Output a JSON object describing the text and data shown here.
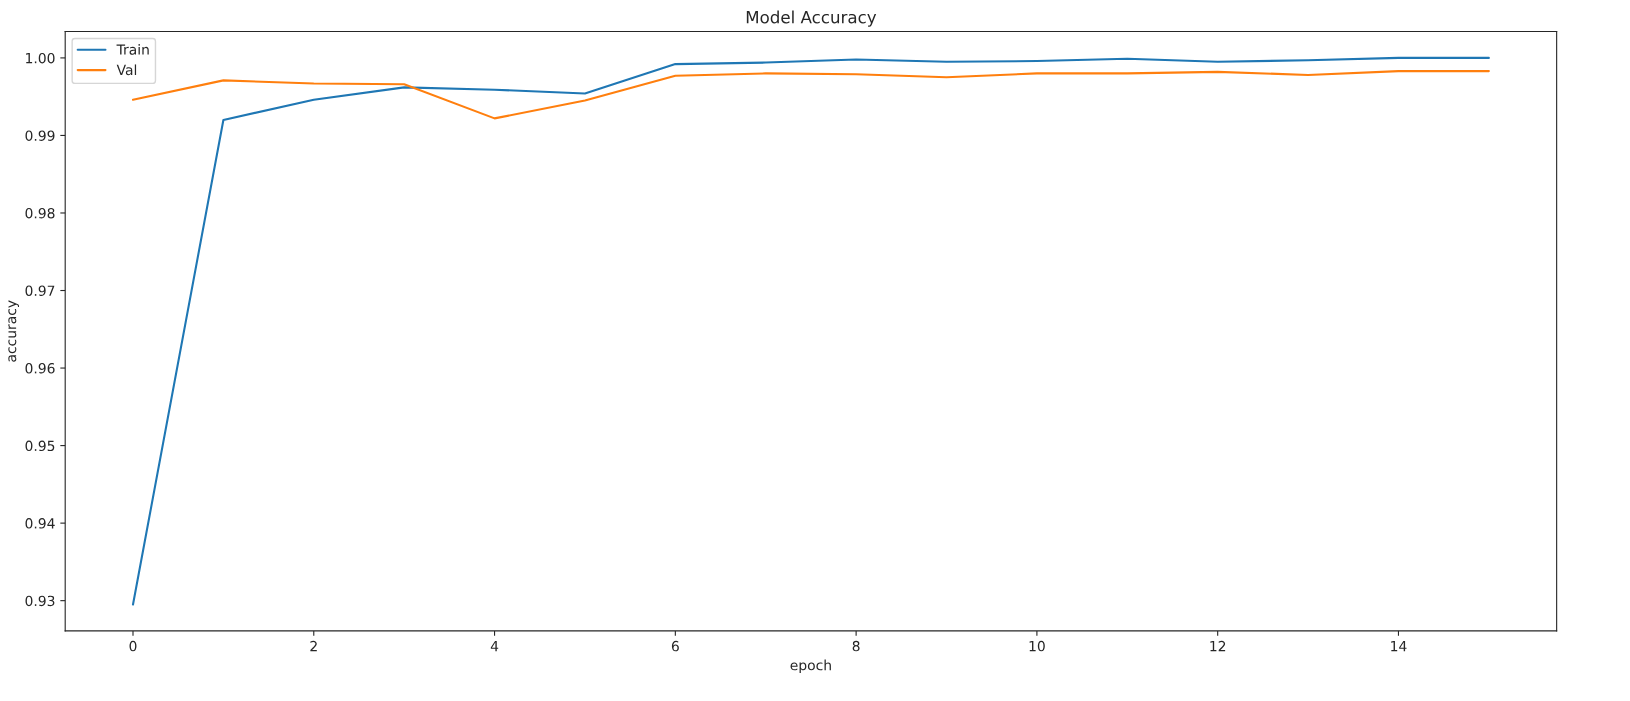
{
  "chart_data": {
    "type": "line",
    "title": "Model Accuracy",
    "xlabel": "epoch",
    "ylabel": "accuracy",
    "x": [
      0,
      1,
      2,
      3,
      4,
      5,
      6,
      7,
      8,
      9,
      10,
      11,
      12,
      13,
      14,
      15
    ],
    "series": [
      {
        "name": "Train",
        "color": "#1f77b4",
        "values": [
          0.9295,
          0.992,
          0.9946,
          0.9962,
          0.9959,
          0.9954,
          0.9992,
          0.9994,
          0.9998,
          0.9995,
          0.9996,
          0.9999,
          0.9995,
          0.9997,
          1.0,
          1.0
        ]
      },
      {
        "name": "Val",
        "color": "#ff7f0e",
        "values": [
          0.9946,
          0.9971,
          0.9967,
          0.9966,
          0.9922,
          0.9945,
          0.9977,
          0.998,
          0.9979,
          0.9975,
          0.998,
          0.998,
          0.9982,
          0.9978,
          0.9983,
          0.9983
        ]
      }
    ],
    "xlim": [
      -0.75,
      15.75
    ],
    "xticks": [
      0,
      2,
      4,
      6,
      8,
      10,
      12,
      14
    ],
    "ylim": [
      0.9261,
      1.0034
    ],
    "yticks": [
      0.93,
      0.94,
      0.95,
      0.96,
      0.97,
      0.98,
      0.99,
      {
        "value": 1.0,
        "label": "1.00"
      }
    ],
    "legend": "top left",
    "grid": false
  }
}
